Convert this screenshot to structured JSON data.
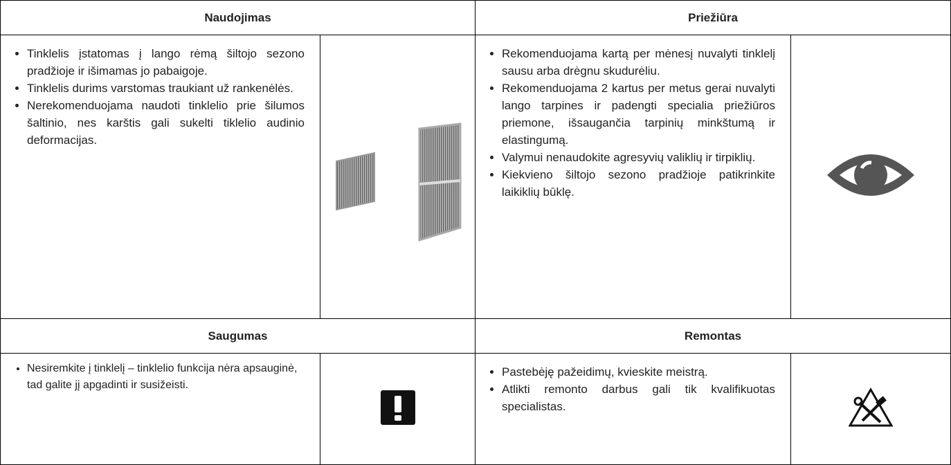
{
  "sections": [
    {
      "title": "Naudojimas",
      "items": [
        "Tinklelis įstatomas į lango rėmą šiltojo sezono pradžioje ir išimamas jo pabaigoje.",
        "Tinklelis durims varstomas traukiant už rankenėlės.",
        "Nerekomenduojama naudoti tinklelio prie šilumos šaltinio, nes karštis gali sukelti tiklelio audinio deformacijas."
      ]
    },
    {
      "title": "Priežiūra",
      "items": [
        "Rekomenduojama kartą per mėnesį nuvalyti tinklelį sausu arba drėgnu skudurėliu.",
        "Rekomenduojama 2 kartus per metus gerai nuvalyti lango tarpines ir padengti specialia priežiūros priemone, išsaugančia tarpinių minkštumą ir elastingumą.",
        "Valymui nenaudokite agresyvių valiklių ir tirpiklių.",
        "Kiekvieno šiltojo sezono pradžioje patikrinkite laikiklių būklę."
      ]
    },
    {
      "title": "Saugumas",
      "items": [
        "Nesiremkite į tinklelį – tinklelio funkcija nėra apsauginė, tad galite jį apgadinti ir susižeisti."
      ]
    },
    {
      "title": "Remontas",
      "items": [
        "Pastebėję pažeidimų, kvieskite meistrą.",
        "Atlikti remonto darbus gali tik kvalifikuotas specialistas."
      ]
    }
  ]
}
